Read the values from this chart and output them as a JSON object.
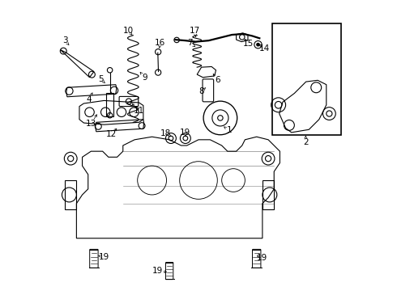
{
  "bg_color": "#ffffff",
  "line_color": "#000000",
  "label_color": "#000000",
  "font_size": 7.5,
  "fig_width": 4.9,
  "fig_height": 3.6,
  "dpi": 100
}
